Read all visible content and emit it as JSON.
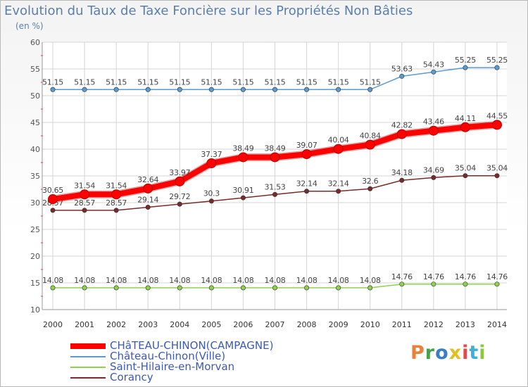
{
  "title": "Evolution du Taux de Taxe Foncière sur les Propriétés Non Bâties",
  "subtitle": "(en %)",
  "logo": {
    "text": "Proxiti",
    "colors": [
      "#e8813a",
      "#4aa04a",
      "#3b7bc8",
      "#e0c020",
      "#e24a4a",
      "#3bb0d8",
      "#8dc63f"
    ]
  },
  "chart_data": {
    "type": "line",
    "title": "Evolution du Taux de Taxe Foncière sur les Propriétés Non Bâties",
    "ylabel": "(en %)",
    "xlabel": "",
    "x": [
      2000,
      2001,
      2002,
      2003,
      2004,
      2005,
      2006,
      2007,
      2008,
      2009,
      2010,
      2011,
      2012,
      2013,
      2014
    ],
    "ylim": [
      10,
      60
    ],
    "yticks": [
      10,
      15,
      20,
      25,
      30,
      35,
      40,
      45,
      50,
      55,
      60
    ],
    "grid": true,
    "legend_position": "bottom-left",
    "series": [
      {
        "name": "CHâTEAU-CHINON(CAMPAGNE)",
        "color": "#ff0000",
        "emphasis": true,
        "values": [
          30.65,
          31.54,
          31.54,
          32.64,
          33.97,
          37.37,
          38.49,
          38.49,
          39.07,
          40.04,
          40.84,
          42.82,
          43.46,
          44.11,
          44.55
        ],
        "labels": [
          "30.65",
          "31.54",
          "31.54",
          "32.64",
          "33.97",
          "37.37",
          "38.49",
          "38.49",
          "39.07",
          "40.04",
          "40.84",
          "42.82",
          "43.46",
          "44.11",
          "44.55"
        ]
      },
      {
        "name": "Château-Chinon(Ville)",
        "color": "#5b9bd5",
        "values": [
          51.15,
          51.15,
          51.15,
          51.15,
          51.15,
          51.15,
          51.15,
          51.15,
          51.15,
          51.15,
          51.15,
          53.63,
          54.43,
          55.25,
          55.25
        ],
        "labels": [
          "51.15",
          "51.15",
          "51.15",
          "51.15",
          "51.15",
          "51.15",
          "51.15",
          "51.15",
          "51.15",
          "51.15",
          "51.15",
          "53.63",
          "54.43",
          "55.25",
          "55.25"
        ]
      },
      {
        "name": "Saint-Hilaire-en-Morvan",
        "color": "#8fd14f",
        "values": [
          14.08,
          14.08,
          14.08,
          14.08,
          14.08,
          14.08,
          14.08,
          14.08,
          14.08,
          14.08,
          14.08,
          14.76,
          14.76,
          14.76,
          14.76
        ],
        "labels": [
          "14.08",
          "14.08",
          "14.08",
          "14.08",
          "14.08",
          "14.08",
          "14.08",
          "14.08",
          "14.08",
          "14.08",
          "14.08",
          "14.76",
          "14.76",
          "14.76",
          "14.76"
        ]
      },
      {
        "name": "Corancy",
        "color": "#7a2a2a",
        "values": [
          28.57,
          28.57,
          28.57,
          29.14,
          29.72,
          30.3,
          30.91,
          31.53,
          32.14,
          32.14,
          32.6,
          34.18,
          34.69,
          35.04,
          35.04
        ],
        "labels": [
          "28.57",
          "28.57",
          "28.57",
          "29.14",
          "29.72",
          "30.3",
          "30.91",
          "31.53",
          "32.14",
          "32.14",
          "32.6",
          "34.18",
          "34.69",
          "35.04",
          "35.04"
        ]
      }
    ]
  }
}
